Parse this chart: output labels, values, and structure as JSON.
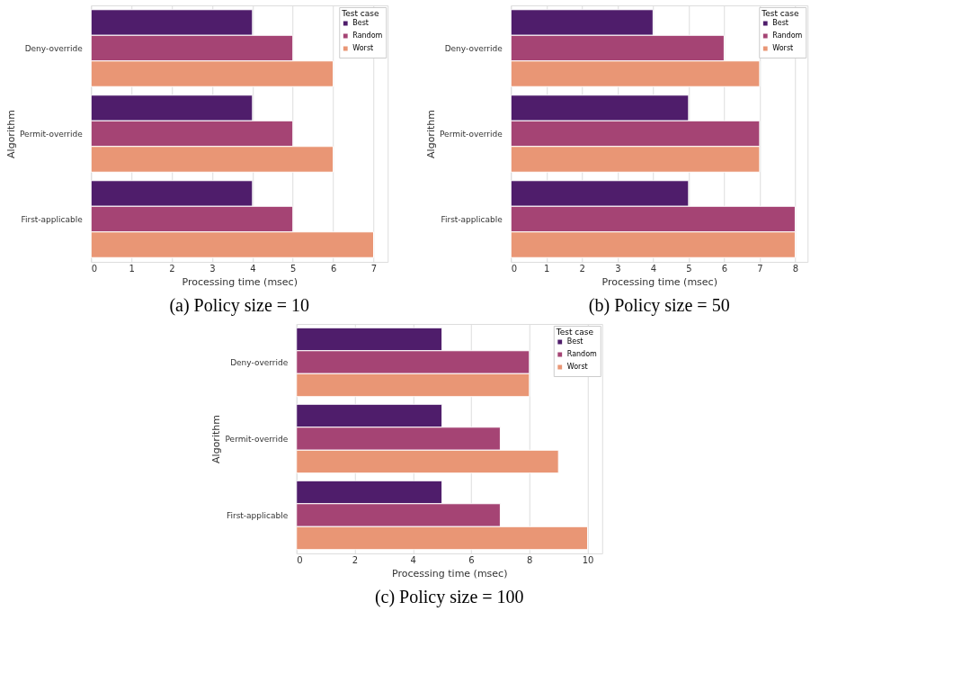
{
  "chart_data": [
    {
      "type": "bar",
      "orientation": "horizontal",
      "title": "(a)   Policy size = 10",
      "xlabel": "Processing time (msec)",
      "ylabel": "Algorithm",
      "legend_title": "Test case",
      "legend": "top right",
      "grid": "x",
      "categories": [
        "Deny-override",
        "Permit-override",
        "First-applicable"
      ],
      "xlim": [
        0,
        7.35
      ],
      "xticks": [
        0,
        1,
        2,
        3,
        4,
        5,
        6,
        7
      ],
      "series": [
        {
          "name": "Best",
          "color": "#4f1d6b",
          "values": [
            4,
            4,
            4
          ]
        },
        {
          "name": "Random",
          "color": "#a54474",
          "values": [
            5,
            5,
            5
          ]
        },
        {
          "name": "Worst",
          "color": "#e99675",
          "values": [
            6,
            6,
            7
          ]
        }
      ]
    },
    {
      "type": "bar",
      "orientation": "horizontal",
      "title": "(b)   Policy size = 50",
      "xlabel": "Processing time (msec)",
      "ylabel": "Algorithm",
      "legend_title": "Test case",
      "legend": "top right",
      "grid": "x",
      "categories": [
        "Deny-override",
        "Permit-override",
        "First-applicable"
      ],
      "xlim": [
        0,
        8.35
      ],
      "xticks": [
        0,
        1,
        2,
        3,
        4,
        5,
        6,
        7,
        8
      ],
      "series": [
        {
          "name": "Best",
          "color": "#4f1d6b",
          "values": [
            4,
            5,
            5
          ]
        },
        {
          "name": "Random",
          "color": "#a54474",
          "values": [
            6,
            7,
            8
          ]
        },
        {
          "name": "Worst",
          "color": "#e99675",
          "values": [
            7,
            7,
            8
          ]
        }
      ]
    },
    {
      "type": "bar",
      "orientation": "horizontal",
      "title": "(c)   Policy size = 100",
      "xlabel": "Processing time (msec)",
      "ylabel": "Algorithm",
      "legend_title": "Test case",
      "legend": "top right",
      "grid": "x",
      "categories": [
        "Deny-override",
        "Permit-override",
        "First-applicable"
      ],
      "xlim": [
        0,
        10.5
      ],
      "xticks": [
        0,
        2,
        4,
        6,
        8,
        10
      ],
      "series": [
        {
          "name": "Best",
          "color": "#4f1d6b",
          "values": [
            5,
            5,
            5
          ]
        },
        {
          "name": "Random",
          "color": "#a54474",
          "values": [
            8,
            7,
            7
          ]
        },
        {
          "name": "Worst",
          "color": "#e99675",
          "values": [
            8,
            9,
            10
          ]
        }
      ]
    }
  ]
}
